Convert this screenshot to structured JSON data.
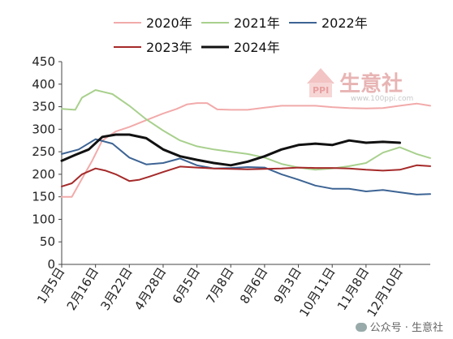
{
  "chart_data": {
    "type": "line",
    "title": "",
    "xlabel": "",
    "ylabel": "",
    "ylim": [
      0,
      450
    ],
    "yticks": [
      0,
      50,
      100,
      150,
      200,
      250,
      300,
      350,
      400,
      450
    ],
    "categories": [
      "1月5日",
      "2月16日",
      "3月22日",
      "4月28日",
      "6月5日",
      "7月8日",
      "8月6日",
      "9月3日",
      "10月11日",
      "11月8日",
      "12月10日"
    ],
    "grid": false,
    "legend_position": "top",
    "series": [
      {
        "name": "2020年",
        "color": "#f2aaaa",
        "width": 2,
        "x": [
          0,
          0.3,
          0.6,
          0.9,
          1.2,
          1.6,
          2.0,
          2.5,
          3.0,
          3.4,
          3.7,
          4.0,
          4.3,
          4.6,
          5.0,
          5.5,
          6.0,
          6.5,
          7.0,
          7.5,
          8.0,
          8.5,
          9.0,
          9.5,
          10.0,
          10.5,
          10.9
        ],
        "values": [
          150,
          150,
          190,
          230,
          275,
          295,
          305,
          320,
          335,
          345,
          355,
          358,
          358,
          344,
          343,
          343,
          348,
          352,
          352,
          352,
          349,
          347,
          346,
          347,
          352,
          357,
          352
        ]
      },
      {
        "name": "2021年",
        "color": "#a8d08d",
        "width": 2,
        "x": [
          0,
          0.4,
          0.6,
          1.0,
          1.5,
          2.0,
          2.5,
          3.0,
          3.5,
          4.0,
          4.5,
          5.0,
          5.5,
          6.0,
          6.5,
          7.0,
          7.5,
          8.0,
          8.5,
          9.0,
          9.5,
          10.0,
          10.5,
          10.9
        ],
        "values": [
          345,
          343,
          370,
          387,
          378,
          352,
          322,
          297,
          275,
          262,
          255,
          250,
          245,
          237,
          223,
          215,
          210,
          213,
          218,
          225,
          248,
          260,
          245,
          236
        ]
      },
      {
        "name": "2022年",
        "color": "#3d6494",
        "width": 2,
        "x": [
          0,
          0.5,
          1.0,
          1.5,
          2.0,
          2.5,
          3.0,
          3.5,
          4.0,
          4.5,
          5.0,
          5.5,
          6.0,
          6.5,
          7.0,
          7.5,
          8.0,
          8.5,
          9.0,
          9.5,
          10.0,
          10.5,
          10.9
        ],
        "values": [
          245,
          255,
          278,
          268,
          237,
          222,
          225,
          235,
          220,
          213,
          214,
          216,
          215,
          200,
          188,
          175,
          168,
          168,
          162,
          165,
          160,
          155,
          156
        ]
      },
      {
        "name": "2023年",
        "color": "#a52a2a",
        "width": 2,
        "x": [
          0,
          0.3,
          0.6,
          1.0,
          1.3,
          1.6,
          2.0,
          2.3,
          2.6,
          3.0,
          3.5,
          4.0,
          4.5,
          5.0,
          5.5,
          6.0,
          6.5,
          7.0,
          7.5,
          8.0,
          8.5,
          9.0,
          9.5,
          10.0,
          10.5,
          10.9
        ],
        "values": [
          173,
          180,
          200,
          213,
          208,
          200,
          185,
          188,
          195,
          205,
          217,
          215,
          213,
          212,
          211,
          212,
          213,
          215,
          214,
          214,
          213,
          210,
          208,
          210,
          220,
          218
        ]
      },
      {
        "name": "2024年",
        "color": "#111111",
        "width": 3,
        "x": [
          0,
          0.4,
          0.8,
          1.2,
          1.6,
          2.0,
          2.5,
          3.0,
          3.5,
          4.0,
          4.5,
          5.0,
          5.5,
          6.0,
          6.5,
          7.0,
          7.5,
          8.0,
          8.5,
          9.0,
          9.5,
          10.0
        ],
        "values": [
          230,
          243,
          255,
          283,
          288,
          288,
          280,
          255,
          240,
          232,
          225,
          220,
          228,
          240,
          255,
          265,
          268,
          265,
          275,
          270,
          272,
          270
        ]
      }
    ]
  },
  "legend": {
    "row1": [
      "2020年",
      "2021年",
      "2022年"
    ],
    "row2": [
      "2023年",
      "2024年"
    ]
  },
  "watermark": {
    "brand": "生意社",
    "logo_text": "PPI",
    "url": "www.100ppi.com"
  },
  "footer": "公众号 · 生意社"
}
